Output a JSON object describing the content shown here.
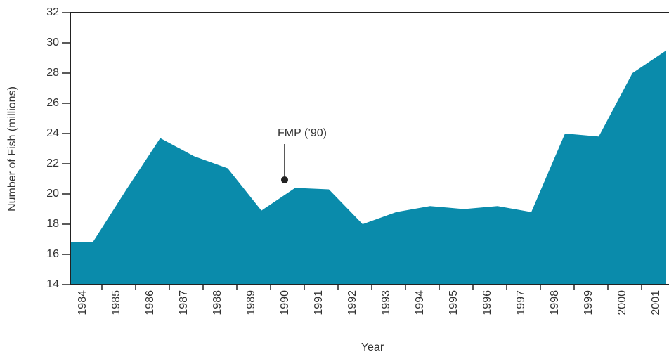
{
  "chart_data": {
    "type": "area",
    "x_label": "Year",
    "y_label": "Number of Fish (millions)",
    "annotation": "FMP (’90)",
    "categories": [
      "1984",
      "1985",
      "1986",
      "1987",
      "1988",
      "1989",
      "1990",
      "1991",
      "1992",
      "1993",
      "1994",
      "1995",
      "1996",
      "1997",
      "1998",
      "1999",
      "2000",
      "2001"
    ],
    "values": [
      16.8,
      20.3,
      23.7,
      22.5,
      21.7,
      18.9,
      20.4,
      20.3,
      18.0,
      18.8,
      19.2,
      19.0,
      19.2,
      18.8,
      24.0,
      23.8,
      28.0,
      29.5
    ],
    "color": "#0a8bab",
    "ylim": [
      14,
      32
    ],
    "yticks": [
      14,
      16,
      18,
      20,
      22,
      24,
      26,
      28,
      30,
      32
    ]
  }
}
